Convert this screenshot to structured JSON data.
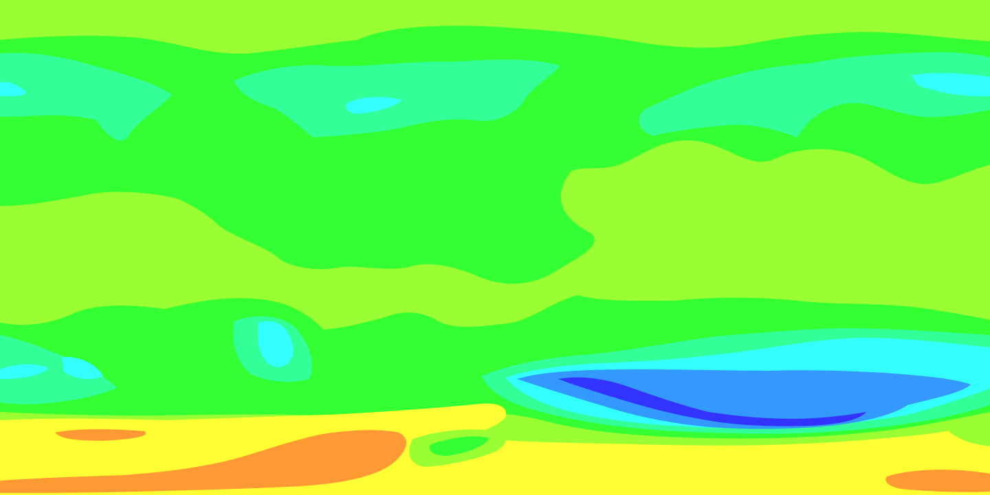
{
  "map": {
    "type": "filled-contour",
    "projection": "equirectangular",
    "legend": "none",
    "labels": "none",
    "colors": {
      "band_1": "#3333ff",
      "band_2": "#3399ff",
      "band_3": "#33ffff",
      "band_4": "#33ff99",
      "band_5": "#33ff33",
      "band_6": "#99ff33",
      "band_7": "#ffff33",
      "band_8": "#ff9933"
    }
  }
}
